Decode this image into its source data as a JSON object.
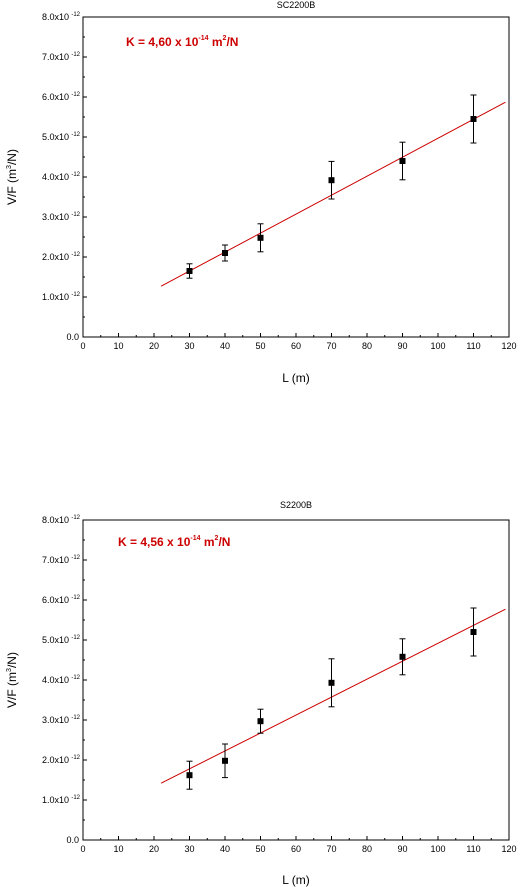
{
  "chart_data": [
    {
      "type": "scatter",
      "title": "SC2200B",
      "xlabel": "L (m)",
      "ylabel": "V/F (m³/N)",
      "annotation": "K = 4,60 x 10⁻¹⁴ m²/N",
      "annotation_parts": {
        "prefix": "K = 4,60 x 10",
        "exp": "-14",
        "mid": " m",
        "exp2": "2",
        "suffix": "/N"
      },
      "ylabel_parts": {
        "prefix": "V/F (m",
        "exp": "3",
        "suffix": "/N)"
      },
      "xlim": [
        0,
        120
      ],
      "ylim": [
        0,
        8e-12
      ],
      "xticks": [
        0,
        10,
        20,
        30,
        40,
        50,
        60,
        70,
        80,
        90,
        100,
        110,
        120
      ],
      "ytick_labels": [
        "0.0",
        "1.0x10",
        "2.0x10",
        "3.0x10",
        "4.0x10",
        "5.0x10",
        "6.0x10",
        "7.0x10",
        "8.0x10"
      ],
      "ytick_exp": "-12",
      "points": [
        {
          "x": 30,
          "y": 1.65e-12,
          "err": 1.8e-13
        },
        {
          "x": 40,
          "y": 2.1e-12,
          "err": 2e-13
        },
        {
          "x": 50,
          "y": 2.48e-12,
          "err": 3.5e-13
        },
        {
          "x": 70,
          "y": 3.92e-12,
          "err": 4.7e-13
        },
        {
          "x": 90,
          "y": 4.4e-12,
          "err": 4.7e-13
        },
        {
          "x": 110,
          "y": 5.45e-12,
          "err": 6e-13
        }
      ],
      "fit_line": {
        "x": [
          22,
          119
        ],
        "y": [
          1.27e-12,
          5.87e-12
        ]
      },
      "colors": {
        "fit": "#cc0000",
        "annotation": "#cc0000",
        "points": "#000000"
      }
    },
    {
      "type": "scatter",
      "title": "S2200B",
      "xlabel": "L (m)",
      "ylabel": "V/F (m³/N)",
      "annotation": "K = 4,56 x 10⁻¹⁴ m²/N",
      "annotation_parts": {
        "prefix": "K = 4,56 x 10",
        "exp": "-14",
        "mid": " m",
        "exp2": "2",
        "suffix": "/N"
      },
      "ylabel_parts": {
        "prefix": "V/F (m",
        "exp": "3",
        "suffix": "/N)"
      },
      "xlim": [
        0,
        120
      ],
      "ylim": [
        0,
        8e-12
      ],
      "xticks": [
        0,
        10,
        20,
        30,
        40,
        50,
        60,
        70,
        80,
        90,
        100,
        110,
        120
      ],
      "ytick_labels": [
        "0.0",
        "1.0x10",
        "2.0x10",
        "3.0x10",
        "4.0x10",
        "5.0x10",
        "6.0x10",
        "7.0x10",
        "8.0x10"
      ],
      "ytick_exp": "-12",
      "points": [
        {
          "x": 30,
          "y": 1.62e-12,
          "err": 3.5e-13
        },
        {
          "x": 40,
          "y": 1.98e-12,
          "err": 4.2e-13
        },
        {
          "x": 50,
          "y": 2.97e-12,
          "err": 3e-13
        },
        {
          "x": 70,
          "y": 3.93e-12,
          "err": 6e-13
        },
        {
          "x": 90,
          "y": 4.58e-12,
          "err": 4.5e-13
        },
        {
          "x": 110,
          "y": 5.2e-12,
          "err": 6e-13
        }
      ],
      "fit_line": {
        "x": [
          22,
          119
        ],
        "y": [
          1.42e-12,
          5.77e-12
        ]
      },
      "colors": {
        "fit": "#cc0000",
        "annotation": "#cc0000",
        "points": "#000000"
      }
    }
  ]
}
